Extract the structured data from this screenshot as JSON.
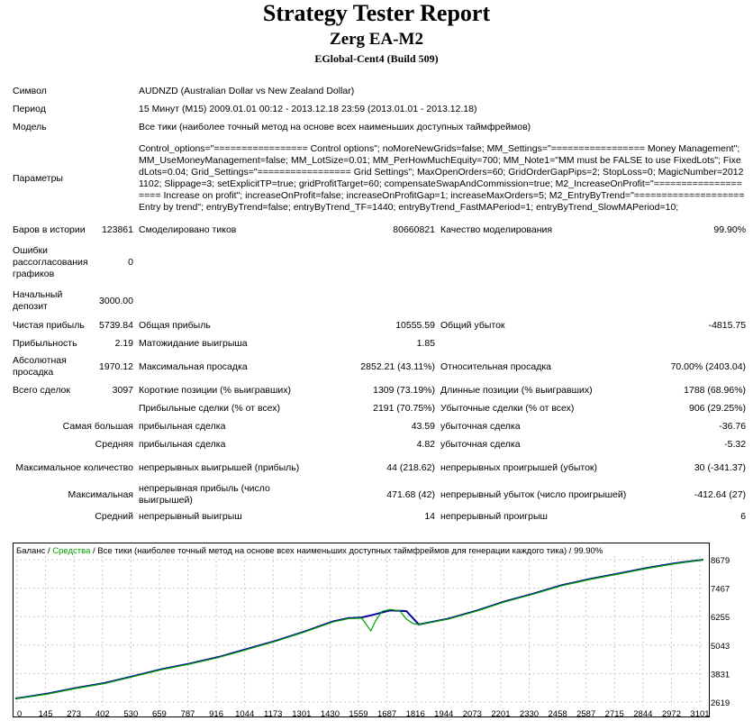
{
  "header": {
    "title": "Strategy Tester Report",
    "ea_name": "Zerg EA-M2",
    "server": "EGlobal-Cent4 (Build 509)"
  },
  "info": {
    "symbol_label": "Символ",
    "symbol_value": "AUDNZD (Australian Dollar vs New Zealand Dollar)",
    "period_label": "Период",
    "period_value": "15 Минут (M15) 2009.01.01 00:12 - 2013.12.18 23:59 (2013.01.01 - 2013.12.18)",
    "model_label": "Модель",
    "model_value": "Все тики (наиболее точный метод на основе всех наименьших доступных таймфреймов)",
    "params_label": "Параметры",
    "params_value": "Control_options=\"================= Control options\"; noMoreNewGrids=false; MM_Settings=\"================= Money Management\"; MM_UseMoneyManagement=false; MM_LotSize=0.01; MM_PerHowMuchEquity=700; MM_Note1=\"MM must be FALSE to use FixedLots\"; FixedLots=0.04; Grid_Settings=\"================= Grid Settings\"; MaxOpenOrders=60; GridOrderGapPips=2; StopLoss=0; MagicNumber=20121102; Slippage=3; setExplicitTP=true; gridProfitTarget=60; compensateSwapAndCommission=true; M2_IncreaseOnProfit=\"==================== Increase on profit\"; increaseOnProfit=false; increaseOnProfitGap=1; increaseMaxOrders=5; M2_EntryByTrend=\"==================== Entry by trend\"; entryByTrend=false; entryByTrend_TF=1440; entryByTrend_FastMAPeriod=1; entryByTrend_SlowMAPeriod=10;"
  },
  "stats": {
    "bars_label": "Баров в истории",
    "bars_value": "123861",
    "ticks_label": "Смоделировано тиков",
    "ticks_value": "80660821",
    "quality_label": "Качество моделирования",
    "quality_value": "99.90%",
    "errors_label": "Ошибки рассогласования графиков",
    "errors_value": "0",
    "deposit_label": "Начальный депозит",
    "deposit_value": "3000.00",
    "net_profit_label": "Чистая прибыль",
    "net_profit_value": "5739.84",
    "gross_profit_label": "Общая прибыль",
    "gross_profit_value": "10555.59",
    "gross_loss_label": "Общий убыток",
    "gross_loss_value": "-4815.75",
    "profit_factor_label": "Прибыльность",
    "profit_factor_value": "2.19",
    "expected_payoff_label": "Матожидание выигрыша",
    "expected_payoff_value": "1.85",
    "abs_dd_label": "Абсолютная просадка",
    "abs_dd_value": "1970.12",
    "max_dd_label": "Максимальная просадка",
    "max_dd_value": "2852.21 (43.11%)",
    "rel_dd_label": "Относительная просадка",
    "rel_dd_value": "70.00% (2403.04)",
    "total_trades_label": "Всего сделок",
    "total_trades_value": "3097",
    "short_label": "Короткие позиции (% выигравших)",
    "short_value": "1309 (73.19%)",
    "long_label": "Длинные позиции (% выигравших)",
    "long_value": "1788 (68.96%)",
    "profit_trades_label": "Прибыльные сделки (% от всех)",
    "profit_trades_value": "2191 (70.75%)",
    "loss_trades_label": "Убыточные сделки (% от всех)",
    "loss_trades_value": "906 (29.25%)",
    "largest_label": "Самая большая",
    "largest_profit_label": "прибыльная сделка",
    "largest_profit_value": "43.59",
    "largest_loss_label": "убыточная сделка",
    "largest_loss_value": "-36.76",
    "average_label": "Средняя",
    "average_profit_label": "прибыльная сделка",
    "average_profit_value": "4.82",
    "average_loss_label": "убыточная сделка",
    "average_loss_value": "-5.32",
    "max_cons_label": "Максимальное количество",
    "max_cons_wins_label": "непрерывных выигрышей (прибыль)",
    "max_cons_wins_value": "44 (218.62)",
    "max_cons_losses_label": "непрерывных проигрышей (убыток)",
    "max_cons_losses_value": "30 (-341.37)",
    "maximal_label": "Максимальная",
    "maximal_profit_label": "непрерывная прибыль (число выигрышей)",
    "maximal_profit_value": "471.68 (42)",
    "maximal_loss_label": "непрерывный убыток (число проигрышей)",
    "maximal_loss_value": "-412.64 (27)",
    "avg_cons_label": "Средний",
    "avg_cons_wins_label": "непрерывный выигрыш",
    "avg_cons_wins_value": "14",
    "avg_cons_losses_label": "непрерывный проигрыш",
    "avg_cons_losses_value": "6"
  },
  "chart_legend": {
    "balance": "Баланс",
    "sep1": " / ",
    "equity": "Средства",
    "rest": " / Все тики (наиболее точный метод на основе всех наименьших доступных таймфреймов для генерации каждого тика) / 99.90%"
  },
  "chart_data": {
    "type": "line",
    "x_ticks": [
      "0",
      "145",
      "273",
      "402",
      "530",
      "659",
      "787",
      "916",
      "1044",
      "1173",
      "1301",
      "1430",
      "1559",
      "1687",
      "1816",
      "1944",
      "2073",
      "2201",
      "2330",
      "2458",
      "2587",
      "2715",
      "2844",
      "2972",
      "3101"
    ],
    "y_ticks": [
      "8679",
      "7467",
      "6255",
      "5043",
      "3831",
      "2619"
    ],
    "ylim": [
      2619,
      8679
    ],
    "xlim": [
      0,
      3097
    ],
    "colors": {
      "balance": "#0000a0",
      "equity": "#00a000",
      "grid": "#c8c8c8"
    },
    "series": [
      {
        "name": "Баланс",
        "x": [
          0,
          145,
          273,
          402,
          530,
          659,
          787,
          916,
          1044,
          1173,
          1301,
          1430,
          1500,
          1559,
          1610,
          1687,
          1760,
          1816,
          1944,
          2073,
          2201,
          2330,
          2458,
          2587,
          2715,
          2844,
          2972,
          3097
        ],
        "y": [
          2770,
          2980,
          3220,
          3430,
          3720,
          4020,
          4260,
          4540,
          4880,
          5230,
          5620,
          6050,
          6190,
          6220,
          6330,
          6520,
          6490,
          5920,
          6160,
          6500,
          6900,
          7230,
          7590,
          7860,
          8090,
          8330,
          8530,
          8679
        ]
      },
      {
        "name": "Средства",
        "x": [
          0,
          145,
          273,
          402,
          530,
          659,
          787,
          916,
          1044,
          1173,
          1301,
          1430,
          1500,
          1559,
          1600,
          1620,
          1650,
          1687,
          1730,
          1760,
          1790,
          1816,
          1944,
          2073,
          2201,
          2330,
          2458,
          2587,
          2715,
          2844,
          2972,
          3097
        ],
        "y": [
          2770,
          2960,
          3200,
          3410,
          3700,
          4000,
          4240,
          4520,
          4860,
          5210,
          5600,
          6030,
          6170,
          6190,
          5650,
          6050,
          6480,
          6560,
          6500,
          6150,
          5960,
          5920,
          6140,
          6480,
          6880,
          7210,
          7570,
          7840,
          8070,
          8310,
          8510,
          8679
        ]
      }
    ]
  }
}
